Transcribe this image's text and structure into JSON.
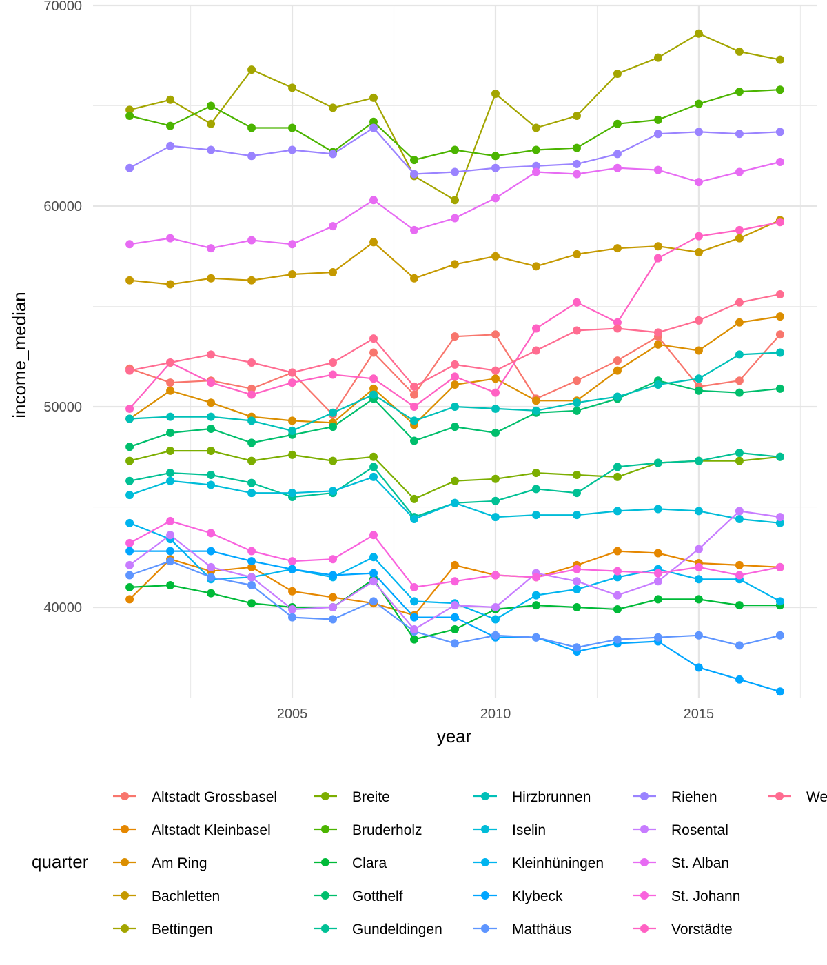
{
  "chart_data": {
    "type": "line",
    "xlabel": "year",
    "ylabel": "income_median",
    "x": [
      2001,
      2002,
      2003,
      2004,
      2005,
      2006,
      2007,
      2008,
      2009,
      2010,
      2011,
      2012,
      2013,
      2014,
      2015,
      2016,
      2017
    ],
    "xlim": [
      2000.1,
      2017.9
    ],
    "ylim": [
      35500,
      70000
    ],
    "x_ticks": [
      "2005",
      "2010",
      "2015"
    ],
    "y_ticks": [
      "40000",
      "50000",
      "60000",
      "70000"
    ],
    "grid": true,
    "legend_title": "quarter",
    "legend_position": "bottom",
    "series": [
      {
        "name": "Altstadt Grossbasel",
        "color": "#F8766D",
        "values": [
          51900,
          51200,
          51300,
          50900,
          51700,
          49600,
          52700,
          50600,
          53500,
          53600,
          50400,
          51300,
          52300,
          53500,
          51000,
          51300,
          53600
        ]
      },
      {
        "name": "Altstadt Kleinbasel",
        "color": "#E58700",
        "values": [
          40400,
          42400,
          41800,
          42000,
          40800,
          40500,
          40200,
          39600,
          42100,
          41600,
          41500,
          42100,
          42800,
          42700,
          42200,
          42100,
          42000
        ]
      },
      {
        "name": "Am Ring",
        "color": "#DB8E00",
        "values": [
          49400,
          50800,
          50200,
          49500,
          49300,
          49200,
          50900,
          49100,
          51100,
          51400,
          50300,
          50300,
          51800,
          53100,
          52800,
          54200,
          54500
        ]
      },
      {
        "name": "Bachletten",
        "color": "#C59900",
        "values": [
          56300,
          56100,
          56400,
          56300,
          56600,
          56700,
          58200,
          56400,
          57100,
          57500,
          57000,
          57600,
          57900,
          58000,
          57700,
          58400,
          59300
        ]
      },
      {
        "name": "Bettingen",
        "color": "#A3A500",
        "values": [
          64800,
          65300,
          64100,
          66800,
          65900,
          64900,
          65400,
          61500,
          60300,
          65600,
          63900,
          64500,
          66600,
          67400,
          68600,
          67700,
          67300
        ]
      },
      {
        "name": "Breite",
        "color": "#7CAE00",
        "values": [
          47300,
          47800,
          47800,
          47300,
          47600,
          47300,
          47500,
          45400,
          46300,
          46400,
          46700,
          46600,
          46500,
          47200,
          47300,
          47300,
          47500
        ]
      },
      {
        "name": "Bruderholz",
        "color": "#4BB400",
        "values": [
          64500,
          64000,
          65000,
          63900,
          63900,
          62700,
          64200,
          62300,
          62800,
          62500,
          62800,
          62900,
          64100,
          64300,
          65100,
          65700,
          65800
        ]
      },
      {
        "name": "Clara",
        "color": "#00BA38",
        "values": [
          41000,
          41100,
          40700,
          40200,
          40000,
          40000,
          41400,
          38400,
          38900,
          39900,
          40100,
          40000,
          39900,
          40400,
          40400,
          40100,
          40100
        ]
      },
      {
        "name": "Gotthelf",
        "color": "#00BE6C",
        "values": [
          48000,
          48700,
          48900,
          48200,
          48600,
          49000,
          50400,
          48300,
          49000,
          48700,
          49700,
          49800,
          50400,
          51300,
          50800,
          50700,
          50900
        ]
      },
      {
        "name": "Gundeldingen",
        "color": "#00C094",
        "values": [
          46300,
          46700,
          46600,
          46200,
          45500,
          45700,
          47000,
          44500,
          45200,
          45300,
          45900,
          45700,
          47000,
          47200,
          47300,
          47700,
          47500
        ]
      },
      {
        "name": "Hirzbrunnen",
        "color": "#00C0B8",
        "values": [
          49400,
          49500,
          49500,
          49300,
          48800,
          49700,
          50600,
          49300,
          50000,
          49900,
          49800,
          50200,
          50500,
          51100,
          51400,
          52600,
          52700
        ]
      },
      {
        "name": "Iselin",
        "color": "#00BCD8",
        "values": [
          45600,
          46300,
          46100,
          45700,
          45700,
          45800,
          46500,
          44400,
          45200,
          44500,
          44600,
          44600,
          44800,
          44900,
          44800,
          44400,
          44200
        ]
      },
      {
        "name": "Kleinhüningen",
        "color": "#00B4EF",
        "values": [
          44200,
          43400,
          41400,
          41500,
          41900,
          41500,
          42500,
          40300,
          40200,
          39400,
          40600,
          40900,
          41500,
          41900,
          41400,
          41400,
          40300
        ]
      },
      {
        "name": "Klybeck",
        "color": "#00A5FF",
        "values": [
          42800,
          42800,
          42800,
          42300,
          41900,
          41600,
          41700,
          39500,
          39500,
          38500,
          38500,
          37800,
          38200,
          38300,
          37000,
          36400,
          35800
        ]
      },
      {
        "name": "Matthäus",
        "color": "#5E95FF",
        "values": [
          41600,
          42300,
          41500,
          41100,
          39500,
          39400,
          40300,
          38800,
          38200,
          38600,
          38500,
          38000,
          38400,
          38500,
          38600,
          38100,
          38600
        ]
      },
      {
        "name": "Riehen",
        "color": "#9A83FF",
        "values": [
          61900,
          63000,
          62800,
          62500,
          62800,
          62600,
          63900,
          61600,
          61700,
          61900,
          62000,
          62100,
          62600,
          63600,
          63700,
          63600,
          63700
        ]
      },
      {
        "name": "Rosental",
        "color": "#C77CFF",
        "values": [
          42100,
          43600,
          42000,
          41500,
          39900,
          40000,
          41300,
          38900,
          40100,
          40000,
          41700,
          41300,
          40600,
          41300,
          42900,
          44800,
          44500
        ]
      },
      {
        "name": "St. Alban",
        "color": "#E76BF3",
        "values": [
          58100,
          58400,
          57900,
          58300,
          58100,
          59000,
          60300,
          58800,
          59400,
          60400,
          61700,
          61600,
          61900,
          61800,
          61200,
          61700,
          62200
        ]
      },
      {
        "name": "St. Johann",
        "color": "#F962DD",
        "values": [
          43200,
          44300,
          43700,
          42800,
          42300,
          42400,
          43600,
          41000,
          41300,
          41600,
          41500,
          41900,
          41800,
          41700,
          42000,
          41600,
          42000
        ]
      },
      {
        "name": "Vorstädte",
        "color": "#FF61C3",
        "values": [
          49900,
          52200,
          51200,
          50600,
          51200,
          51600,
          51400,
          50000,
          51500,
          50700,
          53900,
          55200,
          54200,
          57400,
          58500,
          58800,
          59200
        ]
      },
      {
        "name": "We",
        "color": "#FF6C91",
        "values": [
          51800,
          52200,
          52600,
          52200,
          51700,
          52200,
          53400,
          51000,
          52100,
          51800,
          52800,
          53800,
          53900,
          53700,
          54300,
          55200,
          55600
        ]
      }
    ]
  }
}
